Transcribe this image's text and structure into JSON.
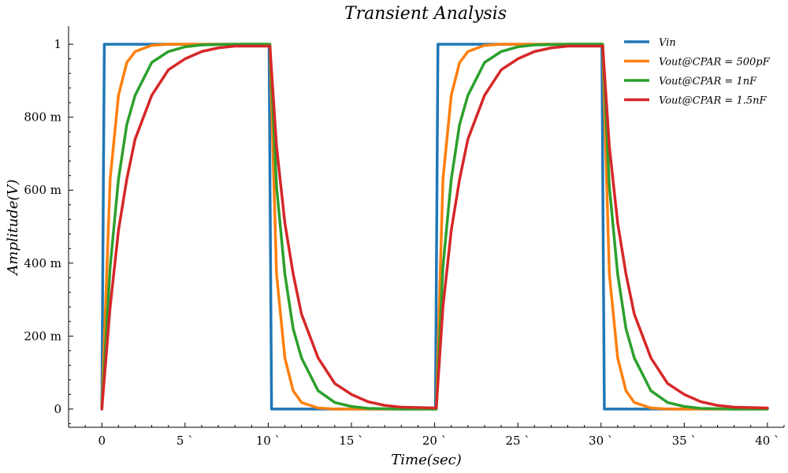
{
  "chart_data": {
    "type": "line",
    "title": "Transient Analysis",
    "xlabel": "Time(sec)",
    "ylabel": "Amplitude(V)",
    "xlim": [
      -2,
      41
    ],
    "ylim": [
      -0.05,
      1.05
    ],
    "x_ticks": [
      0,
      5,
      10,
      15,
      20,
      25,
      30,
      35,
      40
    ],
    "x_tick_labels": [
      "0",
      "5 `",
      "10 `",
      "15 `",
      "20 `",
      "25 `",
      "30 `",
      "35 `",
      "40 `"
    ],
    "y_ticks": [
      0,
      0.2,
      0.4,
      0.6,
      0.8,
      1.0
    ],
    "y_tick_labels": [
      "0",
      "200 m",
      "400 m",
      "600 m",
      "800 m",
      "1"
    ],
    "grid": false,
    "legend_position": "top-right",
    "series": [
      {
        "name": "Vin",
        "color": "#1f77b4",
        "x": [
          0,
          0.15,
          10.05,
          10.2,
          20.05,
          20.2,
          30.05,
          30.2,
          40
        ],
        "y": [
          0,
          1,
          1,
          0,
          0,
          1,
          1,
          0,
          0
        ]
      },
      {
        "name": "Vout@CPAR = 500pF",
        "color": "#ff7f0e",
        "x": [
          0,
          0.5,
          1,
          1.5,
          2,
          3,
          4,
          10.1,
          10.5,
          11,
          11.5,
          12,
          13,
          14,
          20.1,
          20.5,
          21,
          21.5,
          22,
          23,
          24,
          30.1,
          30.5,
          31,
          31.5,
          32,
          33,
          34,
          40
        ],
        "y": [
          0,
          0.63,
          0.86,
          0.95,
          0.98,
          0.997,
          1.0,
          1.0,
          0.37,
          0.14,
          0.05,
          0.018,
          0.003,
          0.0,
          0.0,
          0.63,
          0.86,
          0.95,
          0.98,
          0.997,
          1.0,
          1.0,
          0.37,
          0.14,
          0.05,
          0.018,
          0.003,
          0.0,
          0.0
        ]
      },
      {
        "name": "Vout@CPAR = 1nF",
        "color": "#2ca02c",
        "x": [
          0,
          0.5,
          1,
          1.5,
          2,
          3,
          4,
          5,
          6,
          8,
          10.1,
          10.5,
          11,
          11.5,
          12,
          13,
          14,
          15,
          16,
          18,
          20.1,
          20.5,
          21,
          21.5,
          22,
          23,
          24,
          25,
          26,
          28,
          30.1,
          30.5,
          31,
          31.5,
          32,
          33,
          34,
          35,
          36,
          38,
          40
        ],
        "y": [
          0,
          0.39,
          0.63,
          0.78,
          0.86,
          0.95,
          0.98,
          0.993,
          0.998,
          1.0,
          1.0,
          0.61,
          0.37,
          0.22,
          0.14,
          0.05,
          0.018,
          0.007,
          0.002,
          0.0,
          0.0,
          0.39,
          0.63,
          0.78,
          0.86,
          0.95,
          0.98,
          0.993,
          0.998,
          1.0,
          1.0,
          0.61,
          0.37,
          0.22,
          0.14,
          0.05,
          0.018,
          0.007,
          0.002,
          0.0,
          0.0
        ]
      },
      {
        "name": "Vout@CPAR = 1.5nF",
        "color": "#d62728",
        "x": [
          0,
          0.5,
          1,
          1.5,
          2,
          3,
          4,
          5,
          6,
          7,
          8,
          10.1,
          10.5,
          11,
          11.5,
          12,
          13,
          14,
          15,
          16,
          17,
          18,
          20.1,
          20.5,
          21,
          21.5,
          22,
          23,
          24,
          25,
          26,
          27,
          28,
          30.1,
          30.5,
          31,
          31.5,
          32,
          33,
          34,
          35,
          36,
          37,
          38,
          40
        ],
        "y": [
          0,
          0.28,
          0.49,
          0.63,
          0.74,
          0.86,
          0.93,
          0.96,
          0.98,
          0.99,
          0.995,
          0.995,
          0.72,
          0.51,
          0.37,
          0.26,
          0.14,
          0.07,
          0.04,
          0.02,
          0.01,
          0.005,
          0.003,
          0.28,
          0.49,
          0.63,
          0.74,
          0.86,
          0.93,
          0.96,
          0.98,
          0.99,
          0.995,
          0.995,
          0.72,
          0.51,
          0.37,
          0.26,
          0.14,
          0.07,
          0.04,
          0.02,
          0.01,
          0.005,
          0.003
        ]
      }
    ]
  }
}
